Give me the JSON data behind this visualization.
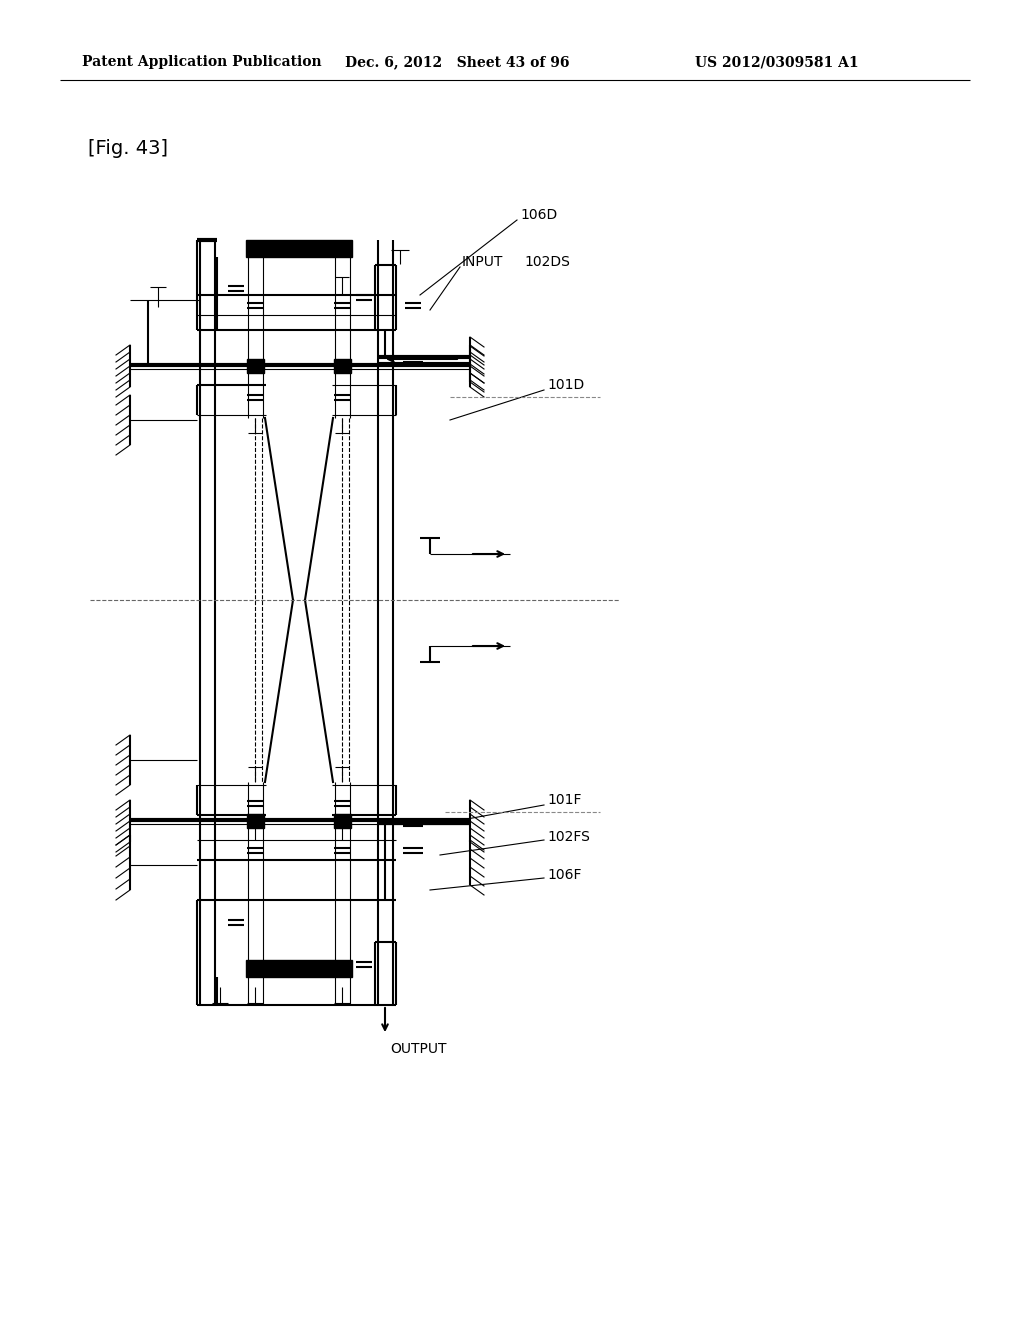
{
  "header_left": "Patent Application Publication",
  "header_mid": "Dec. 6, 2012   Sheet 43 of 96",
  "header_right": "US 2012/0309581 A1",
  "fig_label": "[Fig. 43]",
  "background": "#ffffff",
  "label_106D": "106D",
  "label_102DS": "102DS",
  "label_INPUT": "INPUT",
  "label_101D": "101D",
  "label_101F": "101F",
  "label_102FS": "102FS",
  "label_106F": "106F",
  "label_OUTPUT": "OUTPUT"
}
